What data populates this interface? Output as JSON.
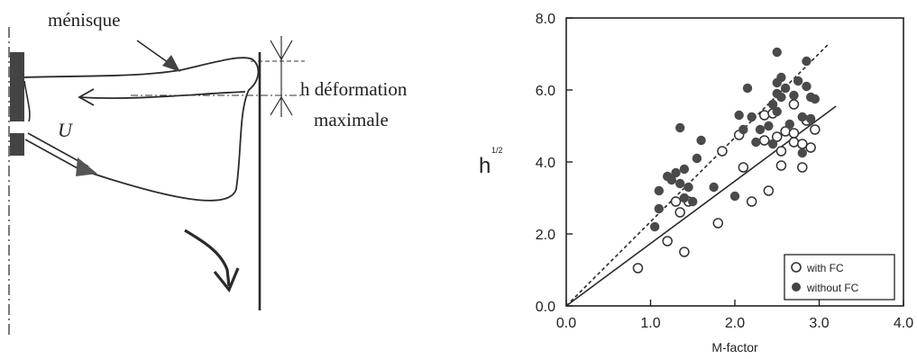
{
  "diagram": {
    "labels": {
      "menisque": "ménisque",
      "h_deformation": "h déformation",
      "maximale": "maximale",
      "velocity": "U"
    }
  },
  "chart_data": {
    "type": "scatter",
    "xlabel": "M-factor",
    "ylabel": "h",
    "ylabel_superscript": "1/2",
    "xlim": [
      0.0,
      4.0
    ],
    "ylim": [
      0.0,
      8.0
    ],
    "xticks": [
      "0.0",
      "1.0",
      "2.0",
      "3.0",
      "4.0"
    ],
    "yticks": [
      "0.0",
      "2.0",
      "4.0",
      "6.0",
      "8.0"
    ],
    "legend_position": "bottom-right",
    "grid": false,
    "series": [
      {
        "name": "with FC",
        "marker": "open-circle",
        "points": [
          [
            0.85,
            1.05
          ],
          [
            1.2,
            1.8
          ],
          [
            1.3,
            2.9
          ],
          [
            1.35,
            2.6
          ],
          [
            1.4,
            1.5
          ],
          [
            1.45,
            2.9
          ],
          [
            1.8,
            2.3
          ],
          [
            1.85,
            4.3
          ],
          [
            2.05,
            4.75
          ],
          [
            2.1,
            3.85
          ],
          [
            2.2,
            2.9
          ],
          [
            2.35,
            4.6
          ],
          [
            2.35,
            5.3
          ],
          [
            2.4,
            3.2
          ],
          [
            2.45,
            5.35
          ],
          [
            2.5,
            4.7
          ],
          [
            2.55,
            4.3
          ],
          [
            2.55,
            3.9
          ],
          [
            2.6,
            4.85
          ],
          [
            2.7,
            4.55
          ],
          [
            2.7,
            5.6
          ],
          [
            2.7,
            4.8
          ],
          [
            2.8,
            4.5
          ],
          [
            2.8,
            3.85
          ],
          [
            2.85,
            5.15
          ],
          [
            2.9,
            4.4
          ],
          [
            2.95,
            4.9
          ]
        ]
      },
      {
        "name": "without FC",
        "marker": "filled-circle",
        "points": [
          [
            1.05,
            2.2
          ],
          [
            1.1,
            2.7
          ],
          [
            1.1,
            3.2
          ],
          [
            1.2,
            3.6
          ],
          [
            1.25,
            3.5
          ],
          [
            1.3,
            3.7
          ],
          [
            1.35,
            4.95
          ],
          [
            1.35,
            3.4
          ],
          [
            1.4,
            3.0
          ],
          [
            1.4,
            3.8
          ],
          [
            1.45,
            3.3
          ],
          [
            1.5,
            2.9
          ],
          [
            1.55,
            4.1
          ],
          [
            1.6,
            4.6
          ],
          [
            1.75,
            3.3
          ],
          [
            2.0,
            3.05
          ],
          [
            2.05,
            5.3
          ],
          [
            2.1,
            4.9
          ],
          [
            2.15,
            6.05
          ],
          [
            2.2,
            5.25
          ],
          [
            2.25,
            4.55
          ],
          [
            2.3,
            4.9
          ],
          [
            2.4,
            5.0
          ],
          [
            2.45,
            5.6
          ],
          [
            2.45,
            4.5
          ],
          [
            2.5,
            7.05
          ],
          [
            2.5,
            6.2
          ],
          [
            2.5,
            5.9
          ],
          [
            2.5,
            5.4
          ],
          [
            2.55,
            6.35
          ],
          [
            2.55,
            5.8
          ],
          [
            2.6,
            6.05
          ],
          [
            2.65,
            5.05
          ],
          [
            2.7,
            5.85
          ],
          [
            2.75,
            6.25
          ],
          [
            2.8,
            5.25
          ],
          [
            2.8,
            4.25
          ],
          [
            2.85,
            6.8
          ],
          [
            2.85,
            6.1
          ],
          [
            2.9,
            5.8
          ],
          [
            2.9,
            5.2
          ],
          [
            2.95,
            5.75
          ]
        ]
      }
    ],
    "fit_lines": [
      {
        "series": "with FC",
        "style": "solid",
        "from": [
          0.0,
          0.0
        ],
        "to": [
          3.2,
          5.55
        ]
      },
      {
        "series": "without FC",
        "style": "dashed",
        "from": [
          0.0,
          0.0
        ],
        "to": [
          3.1,
          7.25
        ]
      }
    ]
  }
}
